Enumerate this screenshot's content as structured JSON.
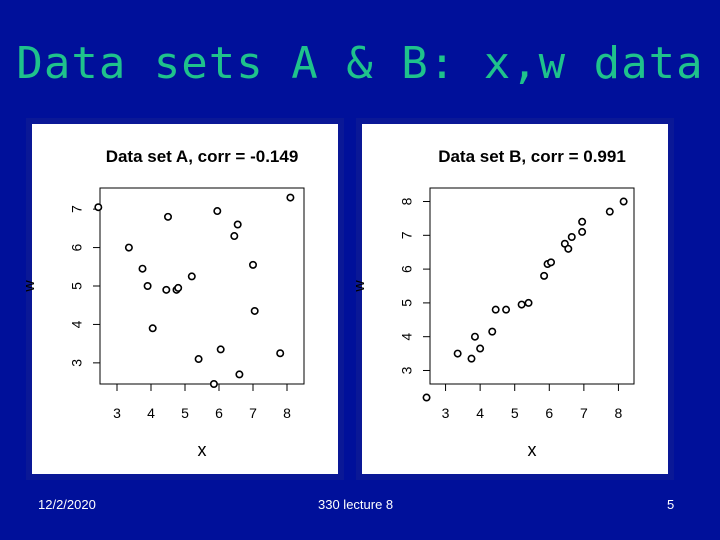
{
  "slide": {
    "title": "Data sets A & B: x,w data",
    "footer_left": "12/2/2020",
    "footer_center": "330 lecture 8",
    "footer_right": "5"
  },
  "colors": {
    "background": "#00109a",
    "title": "#1fc28c",
    "panel": "#0a1896",
    "axis": "#000000",
    "point": "#ffffff"
  },
  "chart_data": [
    {
      "type": "scatter",
      "title": "Data set A, corr = -0.149",
      "xlabel": "x",
      "ylabel": "w",
      "xlim": [
        2.5,
        8.5
      ],
      "ylim": [
        2.45,
        7.55
      ],
      "xticks": [
        3,
        4,
        5,
        6,
        7,
        8
      ],
      "yticks": [
        3,
        4,
        5,
        6,
        7
      ],
      "x": [
        2.45,
        3.35,
        3.75,
        3.9,
        4.05,
        4.45,
        4.5,
        4.75,
        4.8,
        5.2,
        5.4,
        5.85,
        5.95,
        6.05,
        6.45,
        6.55,
        6.6,
        7.0,
        7.05,
        7.8,
        8.1
      ],
      "y": [
        7.05,
        6.0,
        5.45,
        5.0,
        3.9,
        4.9,
        6.8,
        4.9,
        4.95,
        5.25,
        3.1,
        2.45,
        6.95,
        3.35,
        6.3,
        6.6,
        2.7,
        5.55,
        4.35,
        3.25,
        7.3
      ]
    },
    {
      "type": "scatter",
      "title": "Data set B, corr = 0.991",
      "xlabel": "x",
      "ylabel": "w",
      "xlim": [
        2.55,
        8.45
      ],
      "ylim": [
        2.6,
        8.4
      ],
      "xticks": [
        3,
        4,
        5,
        6,
        7,
        8
      ],
      "yticks": [
        3,
        4,
        5,
        6,
        7,
        8
      ],
      "x": [
        2.45,
        3.35,
        3.75,
        3.85,
        4.0,
        4.35,
        4.45,
        4.75,
        5.2,
        5.4,
        5.85,
        5.95,
        6.05,
        6.45,
        6.55,
        6.65,
        6.95,
        6.95,
        7.75,
        8.15
      ],
      "y": [
        2.2,
        3.5,
        3.35,
        4.0,
        3.65,
        4.15,
        4.8,
        4.8,
        4.95,
        5.0,
        5.8,
        6.15,
        6.2,
        6.75,
        6.6,
        6.95,
        7.1,
        7.4,
        7.7,
        8.0
      ]
    }
  ]
}
